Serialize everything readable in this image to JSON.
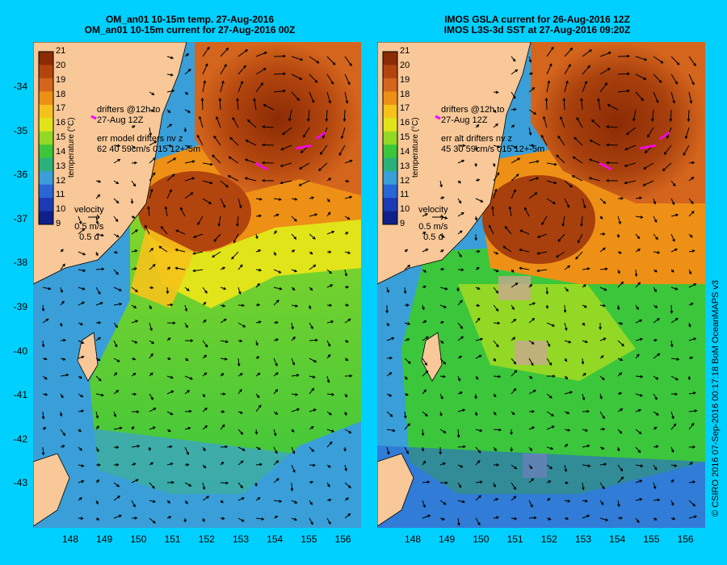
{
  "panels": [
    {
      "id": "left",
      "title_line1": "OM_an01 10-15m temp. 27-Aug-2016",
      "title_line2": "OM_an01 10-15m current for 27-Aug-2016 00Z",
      "drifters_line1": "drifters @12h to",
      "drifters_line2": "27-Aug 12Z",
      "err_line1": "err model drifters nv z",
      "err_line2": "62 40 59cm/s 015 12+-5m",
      "velocity_title": "velocity",
      "velocity_speed": "0.5 m/s",
      "velocity_days": "0.5 d"
    },
    {
      "id": "right",
      "title_line1": "IMOS GSLA current for 26-Aug-2016 12Z",
      "title_line2": "IMOS L3S-3d SST at 27-Aug-2016 09:20Z",
      "drifters_line1": "drifters @12h to",
      "drifters_line2": "27-Aug 12Z",
      "err_line1": "err alt drifters nv z",
      "err_line2": "45 30 59cm/s 015 12+-5m",
      "velocity_title": "velocity",
      "velocity_speed": "0.5 m/s",
      "velocity_days": "0.5 d"
    }
  ],
  "colorbar": {
    "label": "temperature (°C)",
    "ticks": [
      "21",
      "20",
      "19",
      "18",
      "17",
      "16",
      "15",
      "14",
      "13",
      "12",
      "11",
      "10",
      "9"
    ],
    "colors": [
      "#8b2b05",
      "#b2450e",
      "#d4651d",
      "#ee9015",
      "#f6c21b",
      "#e2e41a",
      "#94d826",
      "#3cc63c",
      "#2bb27a",
      "#3a9fd8",
      "#2966d6",
      "#1b3ab5",
      "#10208a"
    ]
  },
  "latitude_labels": [
    "-34",
    "-35",
    "-36",
    "-37",
    "-38",
    "-39",
    "-40",
    "-41",
    "-42",
    "-43"
  ],
  "longitude_labels": [
    "148",
    "149",
    "150",
    "151",
    "152",
    "153",
    "154",
    "155",
    "156"
  ],
  "credit": "© CSIRO 2016  07-Sep-2016 00:17:18 BoM OceanMAPS v3",
  "colors": {
    "background": "#00d0ff",
    "land": "#f8c898",
    "drifter": "#ff00ff"
  }
}
